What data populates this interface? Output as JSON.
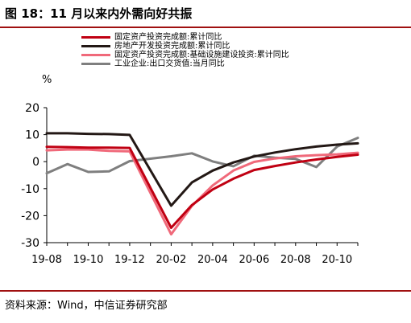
{
  "figure": {
    "title": "图 18：11 月以来内外需向好共振",
    "unit": "%",
    "source": "资料来源：Wind，中信证券研究部"
  },
  "chart_data": {
    "type": "line",
    "title": "",
    "xlabel": "",
    "ylabel": "%",
    "ylim": [
      -30,
      20
    ],
    "yticks": [
      20,
      10,
      0,
      -10,
      -20,
      -30
    ],
    "x_tick_labels": [
      "19-08",
      "19-10",
      "19-12",
      "20-02",
      "20-04",
      "20-06",
      "20-08",
      "20-10"
    ],
    "x": [
      "19-08",
      "19-09",
      "19-10",
      "19-11",
      "19-12",
      "20-01",
      "20-02",
      "20-03",
      "20-04",
      "20-05",
      "20-06",
      "20-07",
      "20-08",
      "20-09",
      "20-10",
      "20-11"
    ],
    "grid": false,
    "legend_position": "top-left",
    "series": [
      {
        "name": "固定资产投资完成额:累计同比",
        "color": "#c00012",
        "values": [
          5.5,
          5.4,
          5.2,
          5.2,
          5.1,
          null,
          -24.5,
          -16.1,
          -10.3,
          -6.3,
          -3.1,
          -1.6,
          -0.3,
          0.8,
          1.8,
          2.6
        ]
      },
      {
        "name": "房地产开发投资完成额:累计同比",
        "color": "#231815",
        "values": [
          10.5,
          10.5,
          10.3,
          10.2,
          9.9,
          null,
          -16.3,
          -7.7,
          -3.3,
          -0.3,
          1.9,
          3.4,
          4.6,
          5.6,
          6.3,
          6.8
        ]
      },
      {
        "name": "固定资产投资完成额:基础设施建设投资:累计同比",
        "color": "#f0697a",
        "values": [
          4.2,
          4.5,
          4.5,
          4.0,
          3.8,
          null,
          -26.9,
          -16.4,
          -8.8,
          -3.3,
          -0.1,
          1.2,
          2.0,
          2.4,
          2.7,
          3.3
        ]
      },
      {
        "name": "工业企业:出口交货值:当月同比",
        "color": "#7f7f7f",
        "values": [
          -4.3,
          -0.9,
          -3.8,
          -3.6,
          0.2,
          null,
          2.0,
          3.1,
          0.1,
          -1.7,
          2.2,
          1.5,
          1.0,
          -2.0,
          5.6,
          8.8
        ]
      }
    ]
  }
}
